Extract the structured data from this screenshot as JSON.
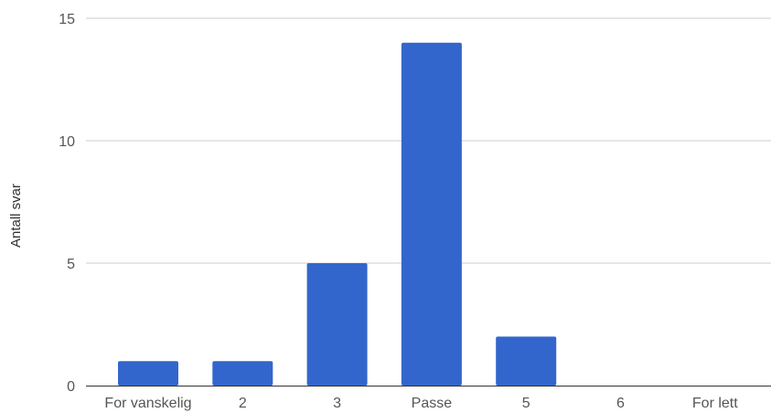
{
  "chart_data": {
    "type": "bar",
    "title": "",
    "xlabel": "",
    "ylabel": "Antall svar",
    "categories": [
      "For vanskelig",
      "2",
      "3",
      "Passe",
      "5",
      "6",
      "For lett"
    ],
    "values": [
      1,
      1,
      5,
      14,
      2,
      0,
      0
    ],
    "ylim": [
      0,
      15
    ],
    "yticks": [
      "0",
      "5",
      "10",
      "15"
    ],
    "grid": true,
    "legend": "none",
    "colors": {
      "bar": "#3366cc",
      "grid": "#cccccc",
      "baseline": "#333333"
    }
  }
}
